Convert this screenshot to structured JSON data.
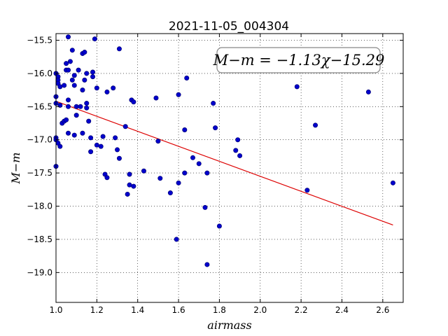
{
  "chart_data": {
    "type": "scatter",
    "title": "2021-11-05_004304",
    "xlabel": "airmass",
    "ylabel": "M−m",
    "xlim": [
      1.0,
      2.7
    ],
    "ylim": [
      -19.45,
      -15.4
    ],
    "y_inverted": true,
    "grid": true,
    "xticks": [
      1.0,
      1.2,
      1.4,
      1.6,
      1.8,
      2.0,
      2.2,
      2.4,
      2.6
    ],
    "xtick_labels": [
      "1.0",
      "1.2",
      "1.4",
      "1.6",
      "1.8",
      "2.0",
      "2.2",
      "2.4",
      "2.6"
    ],
    "yticks": [
      -15.5,
      -16.0,
      -16.5,
      -17.0,
      -17.5,
      -18.0,
      -18.5,
      -19.0
    ],
    "ytick_labels": [
      "−15.5",
      "−16.0",
      "−16.5",
      "−17.0",
      "−17.5",
      "−18.0",
      "−18.5",
      "−19.0"
    ],
    "annotation": "M−m = −1.13χ−15.29",
    "annotation_box_color": "#888888",
    "point_color": "#0000cc",
    "fit_color": "#dd0000",
    "fit_line": {
      "slope": -1.13,
      "intercept": -15.29,
      "x_range": [
        1.0,
        2.65
      ]
    },
    "points": [
      {
        "x": 1.0,
        "y": -16.0
      },
      {
        "x": 1.0,
        "y": -16.35
      },
      {
        "x": 1.0,
        "y": -16.45
      },
      {
        "x": 1.0,
        "y": -16.97
      },
      {
        "x": 1.0,
        "y": -17.0
      },
      {
        "x": 1.0,
        "y": -17.4
      },
      {
        "x": 1.01,
        "y": -16.05
      },
      {
        "x": 1.01,
        "y": -16.1
      },
      {
        "x": 1.01,
        "y": -16.15
      },
      {
        "x": 1.01,
        "y": -17.05
      },
      {
        "x": 1.02,
        "y": -16.2
      },
      {
        "x": 1.02,
        "y": -16.48
      },
      {
        "x": 1.02,
        "y": -17.1
      },
      {
        "x": 1.03,
        "y": -16.75
      },
      {
        "x": 1.04,
        "y": -16.72
      },
      {
        "x": 1.04,
        "y": -16.18
      },
      {
        "x": 1.05,
        "y": -15.95
      },
      {
        "x": 1.05,
        "y": -15.85
      },
      {
        "x": 1.05,
        "y": -16.7
      },
      {
        "x": 1.06,
        "y": -15.45
      },
      {
        "x": 1.06,
        "y": -15.95
      },
      {
        "x": 1.06,
        "y": -16.4
      },
      {
        "x": 1.06,
        "y": -16.5
      },
      {
        "x": 1.06,
        "y": -16.9
      },
      {
        "x": 1.07,
        "y": -15.82
      },
      {
        "x": 1.08,
        "y": -15.65
      },
      {
        "x": 1.08,
        "y": -16.1
      },
      {
        "x": 1.09,
        "y": -16.03
      },
      {
        "x": 1.09,
        "y": -16.18
      },
      {
        "x": 1.09,
        "y": -16.93
      },
      {
        "x": 1.1,
        "y": -16.5
      },
      {
        "x": 1.1,
        "y": -16.63
      },
      {
        "x": 1.11,
        "y": -15.95
      },
      {
        "x": 1.12,
        "y": -16.5
      },
      {
        "x": 1.13,
        "y": -15.7
      },
      {
        "x": 1.13,
        "y": -16.25
      },
      {
        "x": 1.13,
        "y": -16.9
      },
      {
        "x": 1.14,
        "y": -15.68
      },
      {
        "x": 1.14,
        "y": -16.1
      },
      {
        "x": 1.15,
        "y": -16.0
      },
      {
        "x": 1.15,
        "y": -16.45
      },
      {
        "x": 1.15,
        "y": -16.52
      },
      {
        "x": 1.16,
        "y": -16.72
      },
      {
        "x": 1.17,
        "y": -16.97
      },
      {
        "x": 1.17,
        "y": -17.18
      },
      {
        "x": 1.18,
        "y": -15.98
      },
      {
        "x": 1.18,
        "y": -16.05
      },
      {
        "x": 1.19,
        "y": -15.48
      },
      {
        "x": 1.2,
        "y": -16.22
      },
      {
        "x": 1.2,
        "y": -17.08
      },
      {
        "x": 1.22,
        "y": -17.1
      },
      {
        "x": 1.23,
        "y": -16.95
      },
      {
        "x": 1.24,
        "y": -17.52
      },
      {
        "x": 1.25,
        "y": -17.57
      },
      {
        "x": 1.25,
        "y": -16.28
      },
      {
        "x": 1.28,
        "y": -16.22
      },
      {
        "x": 1.29,
        "y": -16.97
      },
      {
        "x": 1.3,
        "y": -17.15
      },
      {
        "x": 1.31,
        "y": -15.63
      },
      {
        "x": 1.31,
        "y": -17.28
      },
      {
        "x": 1.34,
        "y": -16.8
      },
      {
        "x": 1.35,
        "y": -17.82
      },
      {
        "x": 1.36,
        "y": -17.52
      },
      {
        "x": 1.36,
        "y": -17.68
      },
      {
        "x": 1.37,
        "y": -16.4
      },
      {
        "x": 1.38,
        "y": -16.43
      },
      {
        "x": 1.38,
        "y": -17.7
      },
      {
        "x": 1.43,
        "y": -17.47
      },
      {
        "x": 1.49,
        "y": -16.37
      },
      {
        "x": 1.5,
        "y": -17.02
      },
      {
        "x": 1.51,
        "y": -17.58
      },
      {
        "x": 1.56,
        "y": -17.8
      },
      {
        "x": 1.59,
        "y": -18.5
      },
      {
        "x": 1.6,
        "y": -16.32
      },
      {
        "x": 1.6,
        "y": -17.65
      },
      {
        "x": 1.63,
        "y": -16.85
      },
      {
        "x": 1.63,
        "y": -17.5
      },
      {
        "x": 1.64,
        "y": -16.07
      },
      {
        "x": 1.67,
        "y": -17.27
      },
      {
        "x": 1.7,
        "y": -17.36
      },
      {
        "x": 1.73,
        "y": -18.02
      },
      {
        "x": 1.74,
        "y": -18.88
      },
      {
        "x": 1.74,
        "y": -17.5
      },
      {
        "x": 1.77,
        "y": -16.45
      },
      {
        "x": 1.78,
        "y": -16.82
      },
      {
        "x": 1.8,
        "y": -18.3
      },
      {
        "x": 1.88,
        "y": -17.16
      },
      {
        "x": 1.89,
        "y": -17.0
      },
      {
        "x": 1.9,
        "y": -17.24
      },
      {
        "x": 2.18,
        "y": -16.2
      },
      {
        "x": 2.23,
        "y": -17.76
      },
      {
        "x": 2.27,
        "y": -16.78
      },
      {
        "x": 2.53,
        "y": -16.28
      },
      {
        "x": 2.65,
        "y": -17.65
      }
    ]
  }
}
